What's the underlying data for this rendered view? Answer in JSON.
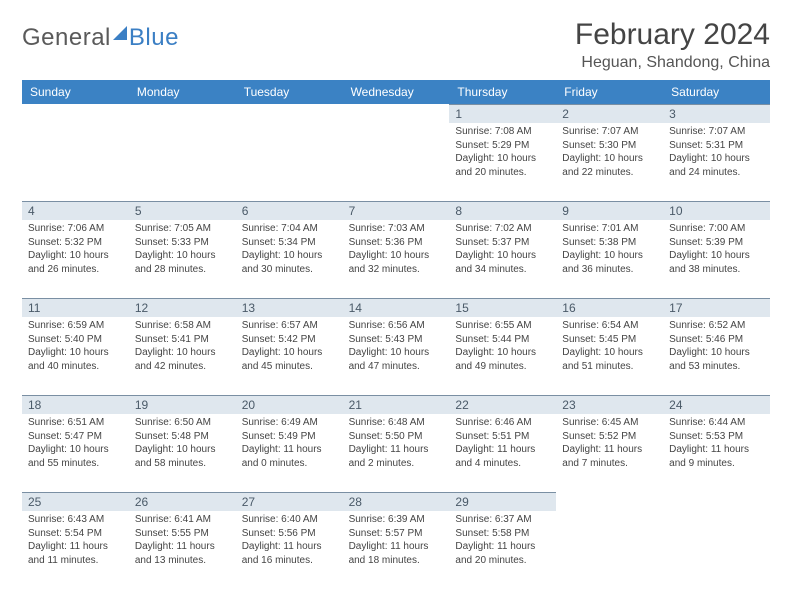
{
  "brand": {
    "part1": "General",
    "part2": "Blue"
  },
  "title": "February 2024",
  "location": "Heguan, Shandong, China",
  "colors": {
    "header_bg": "#3b82c4",
    "header_text": "#ffffff",
    "daynum_bg": "#dfe7ee",
    "daynum_border": "#7a8fa3",
    "body_text": "#444444",
    "title_text": "#444444",
    "location_text": "#555555",
    "page_bg": "#ffffff"
  },
  "typography": {
    "title_fontsize": 30,
    "location_fontsize": 16,
    "dow_fontsize": 12,
    "daynum_fontsize": 12,
    "body_fontsize": 10
  },
  "days_of_week": [
    "Sunday",
    "Monday",
    "Tuesday",
    "Wednesday",
    "Thursday",
    "Friday",
    "Saturday"
  ],
  "weeks": [
    [
      null,
      null,
      null,
      null,
      {
        "n": "1",
        "sunrise": "Sunrise: 7:08 AM",
        "sunset": "Sunset: 5:29 PM",
        "daylight": "Daylight: 10 hours and 20 minutes."
      },
      {
        "n": "2",
        "sunrise": "Sunrise: 7:07 AM",
        "sunset": "Sunset: 5:30 PM",
        "daylight": "Daylight: 10 hours and 22 minutes."
      },
      {
        "n": "3",
        "sunrise": "Sunrise: 7:07 AM",
        "sunset": "Sunset: 5:31 PM",
        "daylight": "Daylight: 10 hours and 24 minutes."
      }
    ],
    [
      {
        "n": "4",
        "sunrise": "Sunrise: 7:06 AM",
        "sunset": "Sunset: 5:32 PM",
        "daylight": "Daylight: 10 hours and 26 minutes."
      },
      {
        "n": "5",
        "sunrise": "Sunrise: 7:05 AM",
        "sunset": "Sunset: 5:33 PM",
        "daylight": "Daylight: 10 hours and 28 minutes."
      },
      {
        "n": "6",
        "sunrise": "Sunrise: 7:04 AM",
        "sunset": "Sunset: 5:34 PM",
        "daylight": "Daylight: 10 hours and 30 minutes."
      },
      {
        "n": "7",
        "sunrise": "Sunrise: 7:03 AM",
        "sunset": "Sunset: 5:36 PM",
        "daylight": "Daylight: 10 hours and 32 minutes."
      },
      {
        "n": "8",
        "sunrise": "Sunrise: 7:02 AM",
        "sunset": "Sunset: 5:37 PM",
        "daylight": "Daylight: 10 hours and 34 minutes."
      },
      {
        "n": "9",
        "sunrise": "Sunrise: 7:01 AM",
        "sunset": "Sunset: 5:38 PM",
        "daylight": "Daylight: 10 hours and 36 minutes."
      },
      {
        "n": "10",
        "sunrise": "Sunrise: 7:00 AM",
        "sunset": "Sunset: 5:39 PM",
        "daylight": "Daylight: 10 hours and 38 minutes."
      }
    ],
    [
      {
        "n": "11",
        "sunrise": "Sunrise: 6:59 AM",
        "sunset": "Sunset: 5:40 PM",
        "daylight": "Daylight: 10 hours and 40 minutes."
      },
      {
        "n": "12",
        "sunrise": "Sunrise: 6:58 AM",
        "sunset": "Sunset: 5:41 PM",
        "daylight": "Daylight: 10 hours and 42 minutes."
      },
      {
        "n": "13",
        "sunrise": "Sunrise: 6:57 AM",
        "sunset": "Sunset: 5:42 PM",
        "daylight": "Daylight: 10 hours and 45 minutes."
      },
      {
        "n": "14",
        "sunrise": "Sunrise: 6:56 AM",
        "sunset": "Sunset: 5:43 PM",
        "daylight": "Daylight: 10 hours and 47 minutes."
      },
      {
        "n": "15",
        "sunrise": "Sunrise: 6:55 AM",
        "sunset": "Sunset: 5:44 PM",
        "daylight": "Daylight: 10 hours and 49 minutes."
      },
      {
        "n": "16",
        "sunrise": "Sunrise: 6:54 AM",
        "sunset": "Sunset: 5:45 PM",
        "daylight": "Daylight: 10 hours and 51 minutes."
      },
      {
        "n": "17",
        "sunrise": "Sunrise: 6:52 AM",
        "sunset": "Sunset: 5:46 PM",
        "daylight": "Daylight: 10 hours and 53 minutes."
      }
    ],
    [
      {
        "n": "18",
        "sunrise": "Sunrise: 6:51 AM",
        "sunset": "Sunset: 5:47 PM",
        "daylight": "Daylight: 10 hours and 55 minutes."
      },
      {
        "n": "19",
        "sunrise": "Sunrise: 6:50 AM",
        "sunset": "Sunset: 5:48 PM",
        "daylight": "Daylight: 10 hours and 58 minutes."
      },
      {
        "n": "20",
        "sunrise": "Sunrise: 6:49 AM",
        "sunset": "Sunset: 5:49 PM",
        "daylight": "Daylight: 11 hours and 0 minutes."
      },
      {
        "n": "21",
        "sunrise": "Sunrise: 6:48 AM",
        "sunset": "Sunset: 5:50 PM",
        "daylight": "Daylight: 11 hours and 2 minutes."
      },
      {
        "n": "22",
        "sunrise": "Sunrise: 6:46 AM",
        "sunset": "Sunset: 5:51 PM",
        "daylight": "Daylight: 11 hours and 4 minutes."
      },
      {
        "n": "23",
        "sunrise": "Sunrise: 6:45 AM",
        "sunset": "Sunset: 5:52 PM",
        "daylight": "Daylight: 11 hours and 7 minutes."
      },
      {
        "n": "24",
        "sunrise": "Sunrise: 6:44 AM",
        "sunset": "Sunset: 5:53 PM",
        "daylight": "Daylight: 11 hours and 9 minutes."
      }
    ],
    [
      {
        "n": "25",
        "sunrise": "Sunrise: 6:43 AM",
        "sunset": "Sunset: 5:54 PM",
        "daylight": "Daylight: 11 hours and 11 minutes."
      },
      {
        "n": "26",
        "sunrise": "Sunrise: 6:41 AM",
        "sunset": "Sunset: 5:55 PM",
        "daylight": "Daylight: 11 hours and 13 minutes."
      },
      {
        "n": "27",
        "sunrise": "Sunrise: 6:40 AM",
        "sunset": "Sunset: 5:56 PM",
        "daylight": "Daylight: 11 hours and 16 minutes."
      },
      {
        "n": "28",
        "sunrise": "Sunrise: 6:39 AM",
        "sunset": "Sunset: 5:57 PM",
        "daylight": "Daylight: 11 hours and 18 minutes."
      },
      {
        "n": "29",
        "sunrise": "Sunrise: 6:37 AM",
        "sunset": "Sunset: 5:58 PM",
        "daylight": "Daylight: 11 hours and 20 minutes."
      },
      null,
      null
    ]
  ]
}
